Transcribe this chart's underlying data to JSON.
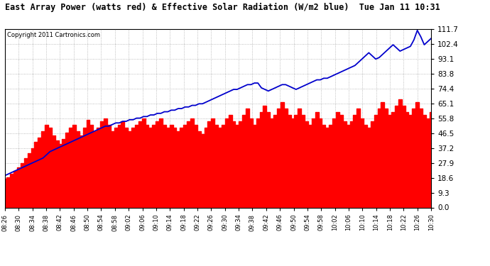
{
  "title": "East Array Power (watts red) & Effective Solar Radiation (W/m2 blue)  Tue Jan 11 10:31",
  "copyright": "Copyright 2011 Cartronics.com",
  "yticks": [
    0.0,
    9.3,
    18.6,
    27.9,
    37.2,
    46.5,
    55.8,
    65.1,
    74.4,
    83.8,
    93.1,
    102.4,
    111.7
  ],
  "ylim": [
    0.0,
    111.7
  ],
  "x_start_min": 506,
  "x_end_min": 630,
  "x_tick_interval": 4,
  "bg_color": "#ffffff",
  "red_color": "#ff0000",
  "blue_color": "#0000cc",
  "grid_color": "#aaaaaa",
  "red_data": [
    18,
    19,
    21,
    23,
    25,
    28,
    31,
    34,
    37,
    41,
    44,
    48,
    52,
    50,
    45,
    42,
    40,
    43,
    47,
    50,
    52,
    48,
    45,
    50,
    55,
    52,
    48,
    50,
    54,
    56,
    52,
    48,
    50,
    52,
    54,
    50,
    48,
    50,
    52,
    54,
    56,
    52,
    50,
    52,
    54,
    56,
    52,
    50,
    52,
    50,
    48,
    50,
    52,
    54,
    56,
    52,
    48,
    46,
    50,
    54,
    56,
    52,
    50,
    52,
    56,
    58,
    54,
    52,
    54,
    58,
    62,
    56,
    52,
    56,
    60,
    64,
    60,
    56,
    58,
    62,
    66,
    62,
    58,
    56,
    58,
    62,
    58,
    54,
    52,
    56,
    60,
    56,
    52,
    50,
    52,
    56,
    60,
    58,
    54,
    52,
    54,
    58,
    62,
    56,
    52,
    50,
    54,
    58,
    62,
    66,
    62,
    58,
    60,
    64,
    68,
    64,
    60,
    58,
    62,
    66,
    62,
    58,
    56,
    60
  ],
  "blue_data": [
    20,
    21,
    22,
    23,
    24,
    25,
    26,
    27,
    28,
    29,
    30,
    31,
    33,
    35,
    36,
    37,
    38,
    39,
    40,
    41,
    42,
    43,
    44,
    45,
    46,
    47,
    48,
    49,
    50,
    51,
    51,
    52,
    53,
    53,
    54,
    54,
    55,
    55,
    56,
    56,
    57,
    57,
    58,
    58,
    59,
    59,
    60,
    60,
    61,
    61,
    62,
    62,
    63,
    63,
    64,
    64,
    65,
    65,
    66,
    67,
    68,
    69,
    70,
    71,
    72,
    73,
    74,
    74,
    75,
    76,
    77,
    77,
    78,
    78,
    75,
    74,
    73,
    74,
    75,
    76,
    77,
    77,
    76,
    75,
    74,
    75,
    76,
    77,
    78,
    79,
    80,
    80,
    81,
    81,
    82,
    83,
    84,
    85,
    86,
    87,
    88,
    89,
    91,
    93,
    95,
    97,
    95,
    93,
    94,
    96,
    98,
    100,
    102,
    100,
    98,
    99,
    100,
    101,
    105,
    111,
    107,
    102,
    104,
    106
  ]
}
